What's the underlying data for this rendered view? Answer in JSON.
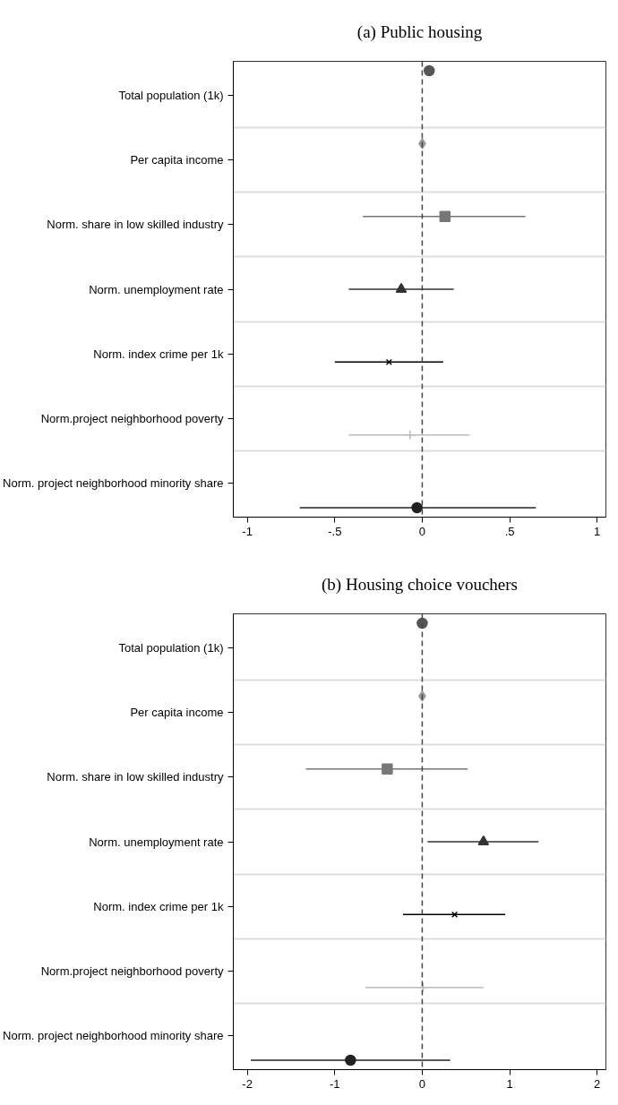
{
  "chart_data": [
    {
      "type": "scatter",
      "title": "(a) Public housing",
      "orientation": "horizontal",
      "grid": "y",
      "categories": [
        "Total population (1k)",
        "Per capita income",
        "Norm. share in low skilled industry",
        "Norm. unemployment rate",
        "Norm. index crime per 1k",
        "Norm.project neighborhood poverty",
        "Norm. project neighborhood minority share"
      ],
      "xlim": [
        -1.08,
        1.05
      ],
      "xticks": [
        {
          "value": -1,
          "label": "-1"
        },
        {
          "value": -0.5,
          "label": "-.5"
        },
        {
          "value": 0,
          "label": "0"
        },
        {
          "value": 0.5,
          "label": ".5"
        },
        {
          "value": 1,
          "label": "1"
        }
      ],
      "ref_lines": [
        {
          "axis": "x",
          "value": 0,
          "color": "#444444",
          "line_style": "dashed"
        }
      ],
      "series": [
        {
          "color": "#555555",
          "marker": "circle",
          "values": [
            0.04,
            null,
            null,
            null,
            null,
            null,
            null
          ]
        },
        {
          "color": "#999999",
          "marker": "diamond",
          "values": [
            null,
            0.0,
            null,
            null,
            null,
            null,
            null
          ]
        },
        {
          "color": "#777777",
          "marker": "square",
          "values": [
            null,
            null,
            0.13,
            null,
            null,
            null,
            null
          ],
          "errors": [
            null,
            null,
            [
              -0.34,
              0.59
            ],
            null,
            null,
            null,
            null
          ]
        },
        {
          "color": "#333333",
          "marker": "triangle",
          "values": [
            null,
            null,
            null,
            -0.12,
            null,
            null,
            null
          ],
          "errors": [
            null,
            null,
            null,
            [
              -0.42,
              0.18
            ],
            null,
            null,
            null
          ]
        },
        {
          "color": "#000000",
          "marker": "x",
          "values": [
            null,
            null,
            null,
            null,
            -0.19,
            null,
            null
          ],
          "errors": [
            null,
            null,
            null,
            null,
            [
              -0.5,
              0.12
            ],
            null,
            null
          ]
        },
        {
          "color": "#bbbbbb",
          "marker": "cross",
          "values": [
            null,
            null,
            null,
            null,
            null,
            -0.07,
            null
          ],
          "errors": [
            null,
            null,
            null,
            null,
            null,
            [
              -0.42,
              0.27
            ],
            null
          ]
        },
        {
          "color": "#222222",
          "marker": "circle",
          "values": [
            null,
            null,
            null,
            null,
            null,
            null,
            -0.03
          ],
          "errors": [
            null,
            null,
            null,
            null,
            null,
            null,
            [
              -0.7,
              0.65
            ]
          ]
        }
      ]
    },
    {
      "type": "scatter",
      "title": "(b) Housing choice vouchers",
      "orientation": "horizontal",
      "grid": "y",
      "categories": [
        "Total population (1k)",
        "Per capita income",
        "Norm. share in low skilled industry",
        "Norm. unemployment rate",
        "Norm. index crime per 1k",
        "Norm.project neighborhood poverty",
        "Norm. project neighborhood minority share"
      ],
      "xlim": [
        -2.16,
        2.1
      ],
      "xticks": [
        -2,
        -1,
        0,
        1,
        2
      ],
      "ref_lines": [
        {
          "axis": "x",
          "value": 0,
          "color": "#444444",
          "line_style": "dashed"
        }
      ],
      "series": [
        {
          "color": "#555555",
          "marker": "circle",
          "values": [
            0.0,
            null,
            null,
            null,
            null,
            null,
            null
          ]
        },
        {
          "color": "#999999",
          "marker": "diamond",
          "values": [
            null,
            0.0,
            null,
            null,
            null,
            null,
            null
          ]
        },
        {
          "color": "#777777",
          "marker": "square",
          "values": [
            null,
            null,
            -0.4,
            null,
            null,
            null,
            null
          ],
          "errors": [
            null,
            null,
            [
              -1.33,
              0.52
            ],
            null,
            null,
            null,
            null
          ]
        },
        {
          "color": "#333333",
          "marker": "triangle",
          "values": [
            null,
            null,
            null,
            0.7,
            null,
            null,
            null
          ],
          "errors": [
            null,
            null,
            null,
            [
              0.06,
              1.33
            ],
            null,
            null,
            null
          ]
        },
        {
          "color": "#000000",
          "marker": "x",
          "values": [
            null,
            null,
            null,
            null,
            0.37,
            null,
            null
          ],
          "errors": [
            null,
            null,
            null,
            null,
            [
              -0.22,
              0.95
            ],
            null,
            null
          ]
        },
        {
          "color": "#bbbbbb",
          "marker": "cross",
          "values": [
            null,
            null,
            null,
            null,
            null,
            0.01,
            null
          ],
          "errors": [
            null,
            null,
            null,
            null,
            null,
            [
              -0.65,
              0.7
            ],
            null
          ]
        },
        {
          "color": "#222222",
          "marker": "circle",
          "values": [
            null,
            null,
            null,
            null,
            null,
            null,
            -0.82
          ],
          "errors": [
            null,
            null,
            null,
            null,
            null,
            null,
            [
              -1.96,
              0.32
            ]
          ]
        }
      ]
    }
  ]
}
